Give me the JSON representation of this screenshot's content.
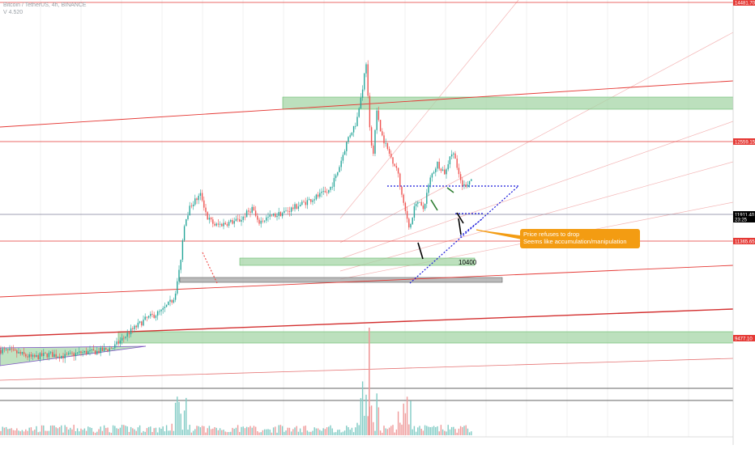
{
  "header": {
    "symbol": "Bitcoin / TetherUS, 4h, BINANCE",
    "volume": "V 4.520"
  },
  "annotations": {
    "callout_line1": "Price refuses to drop",
    "callout_line2": "Seems like accumulation/manipulation",
    "level_label": "10400"
  },
  "colors": {
    "up": "#26a69a",
    "down": "#ef5350",
    "zone_green": "#a5d6a7",
    "zone_gray": "#9e9e9e",
    "resistance": "#e53935",
    "pattern": "#1a1adb",
    "callout": "#f39c12",
    "price_tag": "#000000"
  },
  "chart_data": {
    "type": "candlestick",
    "ylim": [
      7600,
      14600
    ],
    "price_axis": {
      "badges": [
        {
          "value": 14500,
          "label": "14481.70",
          "color": "#e53935"
        },
        {
          "value": 12600,
          "label": "12559.15",
          "color": "#e53935"
        },
        {
          "value": 11300,
          "label": "11911.40",
          "color": "#000000"
        },
        {
          "value": 11200,
          "label": "23:25",
          "color": "#000000"
        },
        {
          "value": 11000,
          "label": "11365.65",
          "color": "#e53935"
        },
        {
          "value": 8800,
          "label": "9477.10",
          "color": "#e53935"
        }
      ]
    },
    "horizontal_levels": [
      14500,
      12600,
      11300,
      11000,
      7600,
      7400
    ],
    "zones": [
      {
        "name": "top-supply-zone",
        "y_low": 13300,
        "y_high": 13450,
        "color": "green"
      },
      {
        "name": "mid-support-zone",
        "y_low": 10550,
        "y_high": 10650,
        "color": "green"
      },
      {
        "name": "lower-gray-zone",
        "y_low": 10330,
        "y_high": 10380,
        "color": "gray"
      },
      {
        "name": "bottom-demand-zone",
        "y_low": 8700,
        "y_high": 8850,
        "color": "green"
      }
    ],
    "callout": {
      "anchor_price": 11180
    }
  }
}
